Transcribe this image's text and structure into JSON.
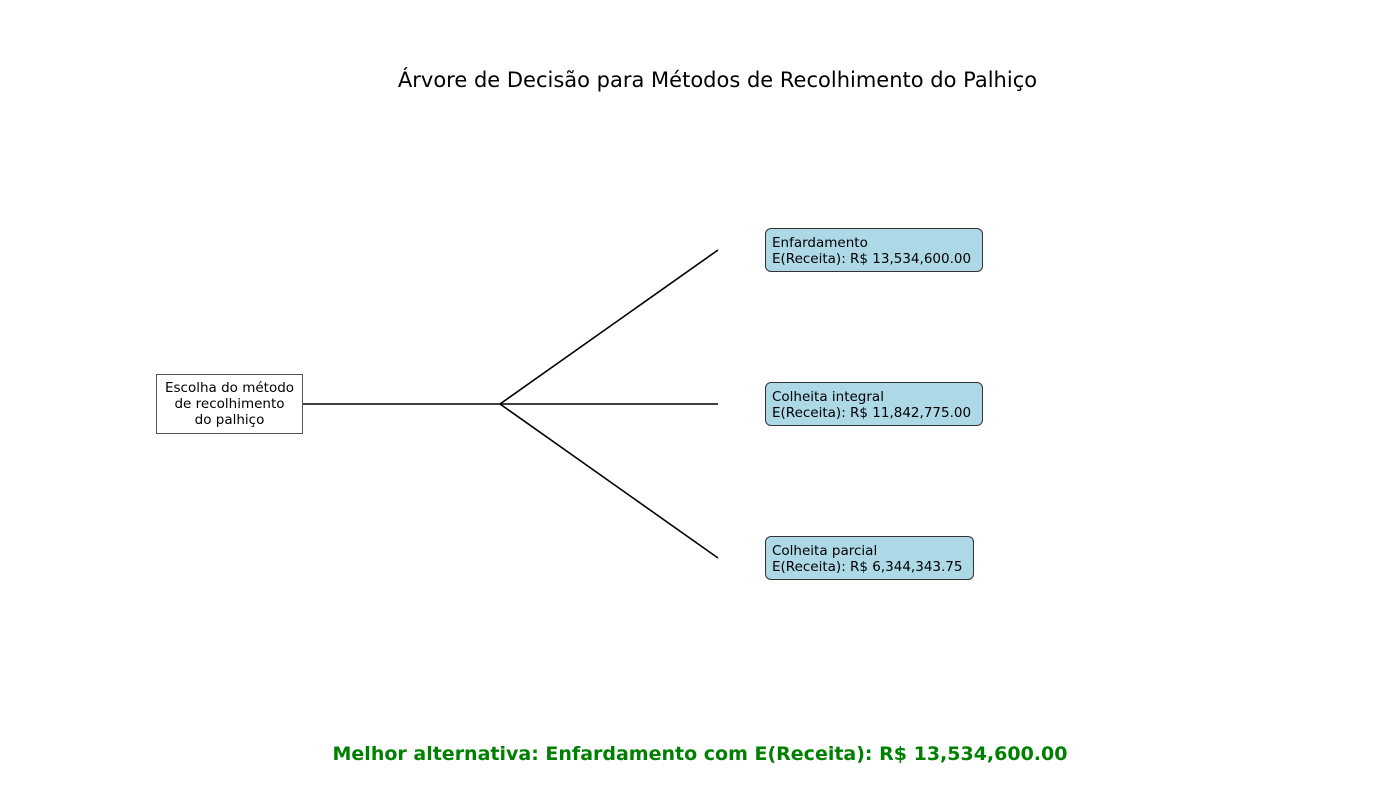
{
  "title": "Árvore de Decisão para Métodos de Recolhimento do Palhiço",
  "root": {
    "lines": [
      "Escolha do método",
      "de recolhimento",
      "do palhiço"
    ]
  },
  "leaves": [
    {
      "name": "Enfardamento",
      "value": "E(Receita): R$ 13,534,600.00"
    },
    {
      "name": "Colheita integral",
      "value": "E(Receita): R$ 11,842,775.00"
    },
    {
      "name": "Colheita parcial",
      "value": "E(Receita): R$ 6,344,343.75"
    }
  ],
  "best_alternative": "Melhor alternativa: Enfardamento com E(Receita): R$ 13,534,600.00",
  "colors": {
    "leaf_fill": "#add8e6",
    "best_text": "#008000",
    "line": "#000000"
  }
}
